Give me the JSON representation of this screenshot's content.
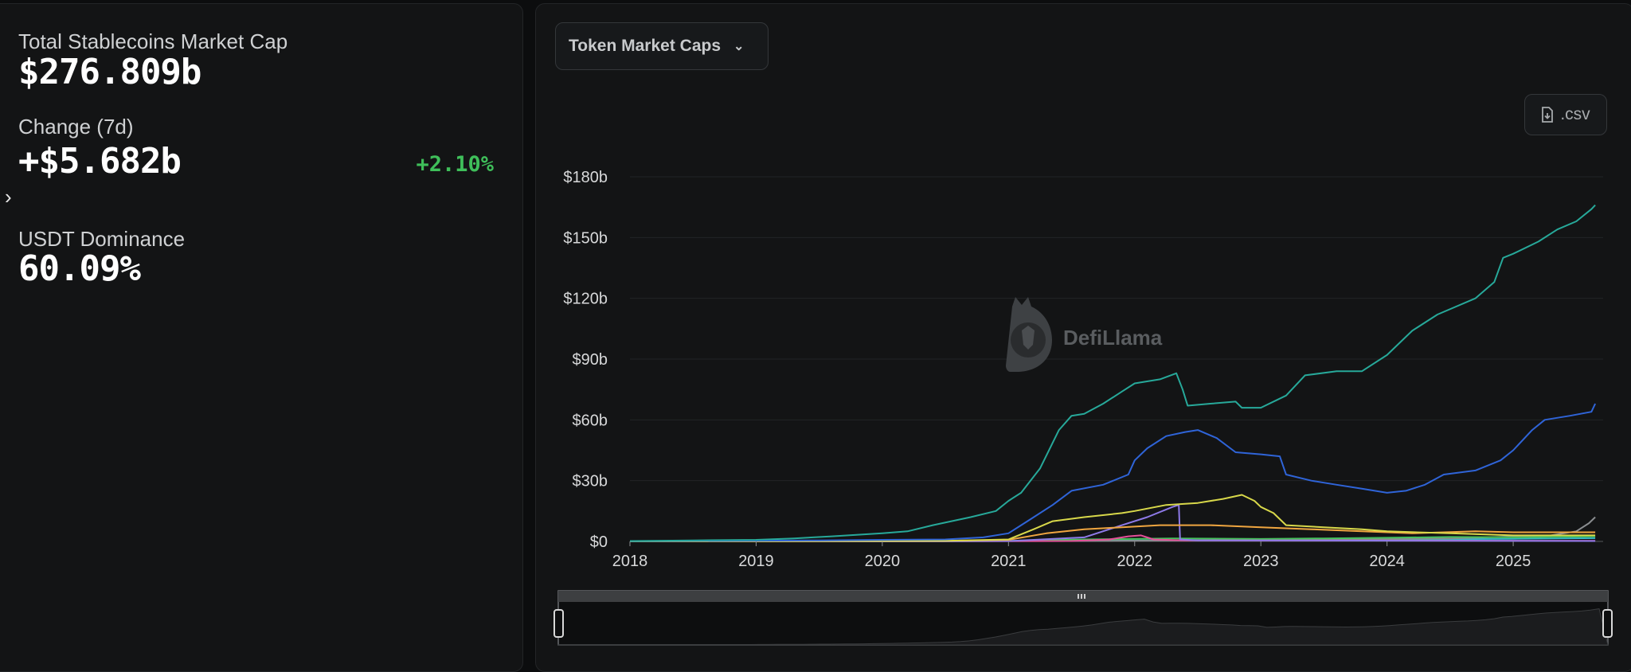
{
  "summary": {
    "total_label": "Total Stablecoins Market Cap",
    "total_value": "$276.809b",
    "change_label": "Change (7d)",
    "change_value": "+$5.682b",
    "change_pct": "+2.10%",
    "dominance_label": "USDT Dominance",
    "dominance_value": "60.09%",
    "positive_color": "#3fbf5a"
  },
  "toolbar": {
    "dropdown_label": "Token Market Caps",
    "csv_label": ".csv"
  },
  "watermark": {
    "text": "DefiLlama"
  },
  "chart_data": {
    "type": "line",
    "title": "",
    "xlabel": "",
    "ylabel": "",
    "x_ticks": [
      "2018",
      "2019",
      "2020",
      "2021",
      "2022",
      "2023",
      "2024",
      "2025"
    ],
    "y_ticks": [
      "$0",
      "$30b",
      "$60b",
      "$90b",
      "$120b",
      "$150b",
      "$180b"
    ],
    "xlim": [
      2018.0,
      2025.7
    ],
    "ylim": [
      0,
      180
    ],
    "y_unit": "billions USD",
    "grid": true,
    "legend": "none",
    "series": [
      {
        "color": "#27a99a",
        "points": [
          [
            2018.0,
            0.2
          ],
          [
            2018.5,
            0.5
          ],
          [
            2019.0,
            0.8
          ],
          [
            2019.3,
            1.5
          ],
          [
            2019.6,
            2.5
          ],
          [
            2020.0,
            4
          ],
          [
            2020.2,
            5
          ],
          [
            2020.4,
            8
          ],
          [
            2020.7,
            12
          ],
          [
            2020.9,
            15
          ],
          [
            2021.0,
            20
          ],
          [
            2021.1,
            24
          ],
          [
            2021.25,
            36
          ],
          [
            2021.4,
            55
          ],
          [
            2021.5,
            62
          ],
          [
            2021.6,
            63
          ],
          [
            2021.75,
            68
          ],
          [
            2021.9,
            74
          ],
          [
            2022.0,
            78
          ],
          [
            2022.2,
            80
          ],
          [
            2022.33,
            83
          ],
          [
            2022.38,
            75
          ],
          [
            2022.42,
            67
          ],
          [
            2022.6,
            68
          ],
          [
            2022.8,
            69
          ],
          [
            2022.85,
            66
          ],
          [
            2023.0,
            66
          ],
          [
            2023.2,
            72
          ],
          [
            2023.35,
            82
          ],
          [
            2023.6,
            84
          ],
          [
            2023.8,
            84
          ],
          [
            2024.0,
            92
          ],
          [
            2024.2,
            104
          ],
          [
            2024.4,
            112
          ],
          [
            2024.7,
            120
          ],
          [
            2024.85,
            128
          ],
          [
            2024.92,
            140
          ],
          [
            2025.0,
            142
          ],
          [
            2025.2,
            148
          ],
          [
            2025.35,
            154
          ],
          [
            2025.5,
            158
          ],
          [
            2025.62,
            164
          ],
          [
            2025.65,
            166
          ]
        ]
      },
      {
        "color": "#2f64d8",
        "points": [
          [
            2018.0,
            0.1
          ],
          [
            2018.8,
            0.3
          ],
          [
            2019.5,
            0.5
          ],
          [
            2020.0,
            0.8
          ],
          [
            2020.5,
            1
          ],
          [
            2020.8,
            2
          ],
          [
            2021.0,
            4
          ],
          [
            2021.15,
            10
          ],
          [
            2021.35,
            18
          ],
          [
            2021.5,
            25
          ],
          [
            2021.75,
            28
          ],
          [
            2021.95,
            33
          ],
          [
            2022.0,
            40
          ],
          [
            2022.1,
            46
          ],
          [
            2022.25,
            52
          ],
          [
            2022.4,
            54
          ],
          [
            2022.5,
            55
          ],
          [
            2022.65,
            51
          ],
          [
            2022.8,
            44
          ],
          [
            2023.0,
            43
          ],
          [
            2023.15,
            42
          ],
          [
            2023.2,
            33
          ],
          [
            2023.4,
            30
          ],
          [
            2023.6,
            28
          ],
          [
            2023.8,
            26
          ],
          [
            2024.0,
            24
          ],
          [
            2024.15,
            25
          ],
          [
            2024.3,
            28
          ],
          [
            2024.45,
            33
          ],
          [
            2024.7,
            35
          ],
          [
            2024.9,
            40
          ],
          [
            2025.0,
            45
          ],
          [
            2025.15,
            55
          ],
          [
            2025.25,
            60
          ],
          [
            2025.45,
            62
          ],
          [
            2025.62,
            64
          ],
          [
            2025.65,
            68
          ]
        ]
      },
      {
        "color": "#d8d84a",
        "points": [
          [
            2018.0,
            0
          ],
          [
            2020.0,
            0.2
          ],
          [
            2020.5,
            0.3
          ],
          [
            2021.0,
            1
          ],
          [
            2021.2,
            6
          ],
          [
            2021.35,
            10
          ],
          [
            2021.6,
            12
          ],
          [
            2021.9,
            14
          ],
          [
            2022.0,
            15
          ],
          [
            2022.25,
            18
          ],
          [
            2022.5,
            19
          ],
          [
            2022.7,
            21
          ],
          [
            2022.85,
            23
          ],
          [
            2022.95,
            20
          ],
          [
            2023.0,
            17
          ],
          [
            2023.1,
            14
          ],
          [
            2023.2,
            8
          ],
          [
            2023.5,
            7
          ],
          [
            2023.8,
            6
          ],
          [
            2024.0,
            5
          ],
          [
            2024.5,
            4
          ],
          [
            2025.0,
            3
          ],
          [
            2025.65,
            3
          ]
        ]
      },
      {
        "color": "#f0a640",
        "points": [
          [
            2018.0,
            0
          ],
          [
            2019.5,
            0.1
          ],
          [
            2020.5,
            0.3
          ],
          [
            2021.0,
            0.8
          ],
          [
            2021.3,
            4
          ],
          [
            2021.6,
            6
          ],
          [
            2021.9,
            7
          ],
          [
            2022.2,
            8
          ],
          [
            2022.6,
            8
          ],
          [
            2023.0,
            7
          ],
          [
            2023.4,
            6
          ],
          [
            2023.8,
            5
          ],
          [
            2024.2,
            4
          ],
          [
            2024.7,
            5
          ],
          [
            2025.0,
            4.5
          ],
          [
            2025.65,
            4.5
          ]
        ]
      },
      {
        "color": "#8e7ae8",
        "points": [
          [
            2018.0,
            0
          ],
          [
            2020.5,
            0
          ],
          [
            2021.0,
            0.2
          ],
          [
            2021.6,
            2
          ],
          [
            2021.9,
            8
          ],
          [
            2022.1,
            12
          ],
          [
            2022.3,
            17
          ],
          [
            2022.35,
            18
          ],
          [
            2022.36,
            1
          ],
          [
            2022.5,
            0.5
          ],
          [
            2025.65,
            0.2
          ]
        ]
      },
      {
        "color": "#e64f9a",
        "points": [
          [
            2018.0,
            0
          ],
          [
            2021.5,
            0.2
          ],
          [
            2021.8,
            1
          ],
          [
            2021.95,
            2.5
          ],
          [
            2022.05,
            3
          ],
          [
            2022.15,
            1
          ],
          [
            2022.4,
            0.5
          ],
          [
            2025.65,
            0.3
          ]
        ]
      },
      {
        "color": "#45c25c",
        "points": [
          [
            2018.0,
            0
          ],
          [
            2021.0,
            0.3
          ],
          [
            2021.6,
            1
          ],
          [
            2022.3,
            1.5
          ],
          [
            2023.0,
            1.2
          ],
          [
            2023.5,
            1.5
          ],
          [
            2024.0,
            1.8
          ],
          [
            2024.5,
            2.2
          ],
          [
            2025.0,
            2.0
          ],
          [
            2025.65,
            2.5
          ]
        ]
      },
      {
        "color": "#8a8d90",
        "points": [
          [
            2018.0,
            0
          ],
          [
            2021.5,
            0.2
          ],
          [
            2022.5,
            0.5
          ],
          [
            2023.5,
            0.8
          ],
          [
            2024.5,
            1.5
          ],
          [
            2025.3,
            3
          ],
          [
            2025.5,
            5
          ],
          [
            2025.6,
            9
          ],
          [
            2025.65,
            12
          ]
        ]
      },
      {
        "color": "#34b7c9",
        "points": [
          [
            2018.0,
            0
          ],
          [
            2021.0,
            0.2
          ],
          [
            2022.0,
            0.5
          ],
          [
            2023.0,
            0.8
          ],
          [
            2024.0,
            1
          ],
          [
            2025.0,
            1.3
          ],
          [
            2025.65,
            1.6
          ]
        ]
      }
    ],
    "overview": {
      "handles": [
        "left",
        "right"
      ]
    }
  }
}
